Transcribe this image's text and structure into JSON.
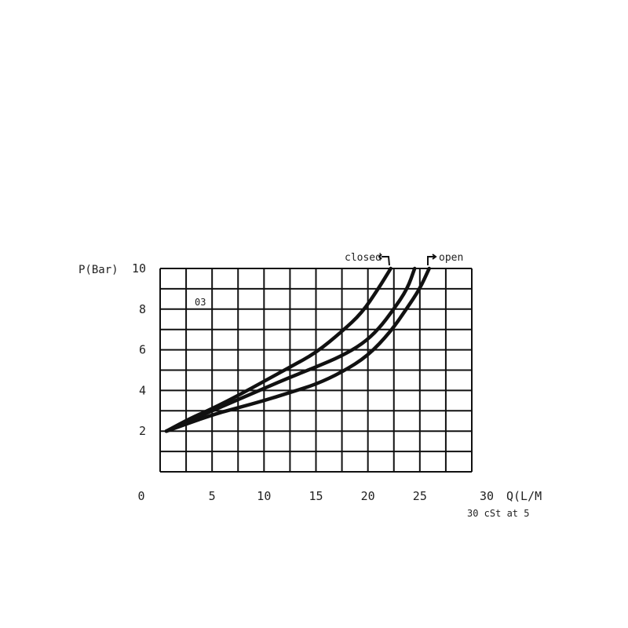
{
  "chart_data": {
    "type": "line",
    "ylabel": "P(Bar)",
    "xlabel": "Q(L/M",
    "note": "30 cSt at 5",
    "inset_label": "03",
    "xlim": [
      0,
      30
    ],
    "ylim": [
      0,
      10
    ],
    "x_ticks": [
      "0",
      "5",
      "10",
      "15",
      "20",
      "25",
      "30"
    ],
    "y_ticks": [
      "2",
      "4",
      "6",
      "8",
      "10"
    ],
    "grid": true,
    "annotations": [
      "closed",
      "open"
    ],
    "line_color": "#111111",
    "series": [
      {
        "annotation": "closed",
        "points": [
          [
            0.6,
            2
          ],
          [
            3,
            2.65
          ],
          [
            5,
            3.1
          ],
          [
            7.5,
            3.75
          ],
          [
            10,
            4.45
          ],
          [
            12.5,
            5.15
          ],
          [
            15,
            5.85
          ],
          [
            17.5,
            6.9
          ],
          [
            19.4,
            7.8
          ],
          [
            21,
            9
          ],
          [
            22.2,
            10
          ]
        ]
      },
      {
        "points": [
          [
            0.6,
            2
          ],
          [
            5,
            3.0
          ],
          [
            7.5,
            3.55
          ],
          [
            10,
            4.1
          ],
          [
            12.5,
            4.65
          ],
          [
            15,
            5.15
          ],
          [
            17.5,
            5.7
          ],
          [
            19.5,
            6.3
          ],
          [
            21,
            7
          ],
          [
            22.5,
            8
          ],
          [
            23.8,
            9
          ],
          [
            24.5,
            10
          ]
        ]
      },
      {
        "annotation": "open",
        "points": [
          [
            0.6,
            2
          ],
          [
            5,
            2.8
          ],
          [
            7.5,
            3.15
          ],
          [
            10,
            3.5
          ],
          [
            12.5,
            3.9
          ],
          [
            15,
            4.3
          ],
          [
            17.5,
            4.9
          ],
          [
            20,
            5.7
          ],
          [
            22.2,
            6.9
          ],
          [
            23.7,
            8
          ],
          [
            25,
            9
          ],
          [
            25.9,
            10
          ]
        ]
      }
    ]
  }
}
